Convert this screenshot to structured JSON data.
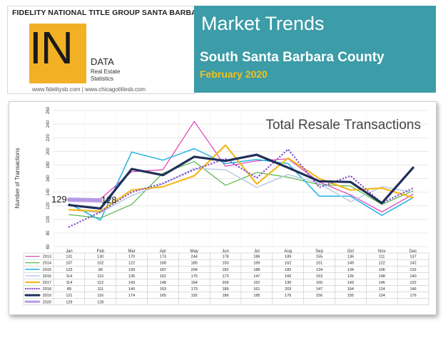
{
  "header": {
    "brand": "FIDELITY NATIONAL TITLE GROUP SANTA BARBARA",
    "logo_in": "IN",
    "logo_data": "DATA",
    "logo_sub1": "Real Estate",
    "logo_sub2": "Statistics",
    "websites": "www.fidelitysb.com | www.chicagotitlesb.com",
    "title": "Market Trends",
    "region": "South Santa Barbara County",
    "month": "February 2020",
    "colors": {
      "teal": "#3c9ca8",
      "gold": "#f2b125",
      "month_text": "#f2c21b"
    }
  },
  "chart_data": {
    "type": "line",
    "title": "Total Resale Transactions",
    "ylabel": "Number of Transactions",
    "xlabel": "",
    "ylim": [
      60,
      260
    ],
    "yticks": [
      60,
      80,
      100,
      120,
      140,
      160,
      180,
      200,
      220,
      240,
      260
    ],
    "categories": [
      "Jan",
      "Feb",
      "Mar",
      "Apr",
      "May",
      "Jun",
      "Jul",
      "Aug",
      "Sep",
      "Oct",
      "Nov",
      "Dec"
    ],
    "grid": true,
    "legend": "table-below",
    "series": [
      {
        "name": "2013",
        "color": "#e23bb5",
        "style": "solid",
        "width": 1.2,
        "values": [
          131,
          130,
          170,
          173,
          244,
          178,
          186,
          189,
          155,
          136,
          111,
          137
        ]
      },
      {
        "name": "2014",
        "color": "#55b848",
        "style": "solid",
        "width": 1.2,
        "values": [
          107,
          102,
          122,
          168,
          185,
          150,
          169,
          162,
          151,
          149,
          122,
          142
        ]
      },
      {
        "name": "2015",
        "color": "#1fb3e6",
        "style": "solid",
        "width": 1.5,
        "values": [
          123,
          99,
          199,
          187,
          204,
          182,
          188,
          182,
          134,
          134,
          106,
          132
        ]
      },
      {
        "name": "2016",
        "color": "#b9cbe6",
        "style": "solid",
        "width": 1.5,
        "values": [
          114,
          110,
          135,
          152,
          175,
          173,
          147,
          166,
          153,
          126,
          148,
          140
        ]
      },
      {
        "name": "2017",
        "color": "#f4b81c",
        "style": "solid",
        "width": 2.2,
        "values": [
          114,
          112,
          143,
          148,
          164,
          209,
          152,
          190,
          160,
          143,
          146,
          132
        ]
      },
      {
        "name": "2018",
        "color": "#8a52c8",
        "style": "dotted",
        "width": 2.4,
        "values": [
          89,
          111,
          140,
          153,
          173,
          189,
          161,
          203,
          147,
          164,
          124,
          146
        ]
      },
      {
        "name": "2019",
        "color": "#1f2f5a",
        "style": "solid",
        "width": 3.2,
        "values": [
          121,
          116,
          174,
          165,
          192,
          186,
          195,
          176,
          156,
          155,
          124,
          176
        ]
      },
      {
        "name": "2020",
        "color": "#b69ae6",
        "style": "solid",
        "width": 6,
        "values": [
          129,
          128,
          null,
          null,
          null,
          null,
          null,
          null,
          null,
          null,
          null,
          null
        ]
      }
    ],
    "annotations": [
      "129",
      "128"
    ]
  }
}
